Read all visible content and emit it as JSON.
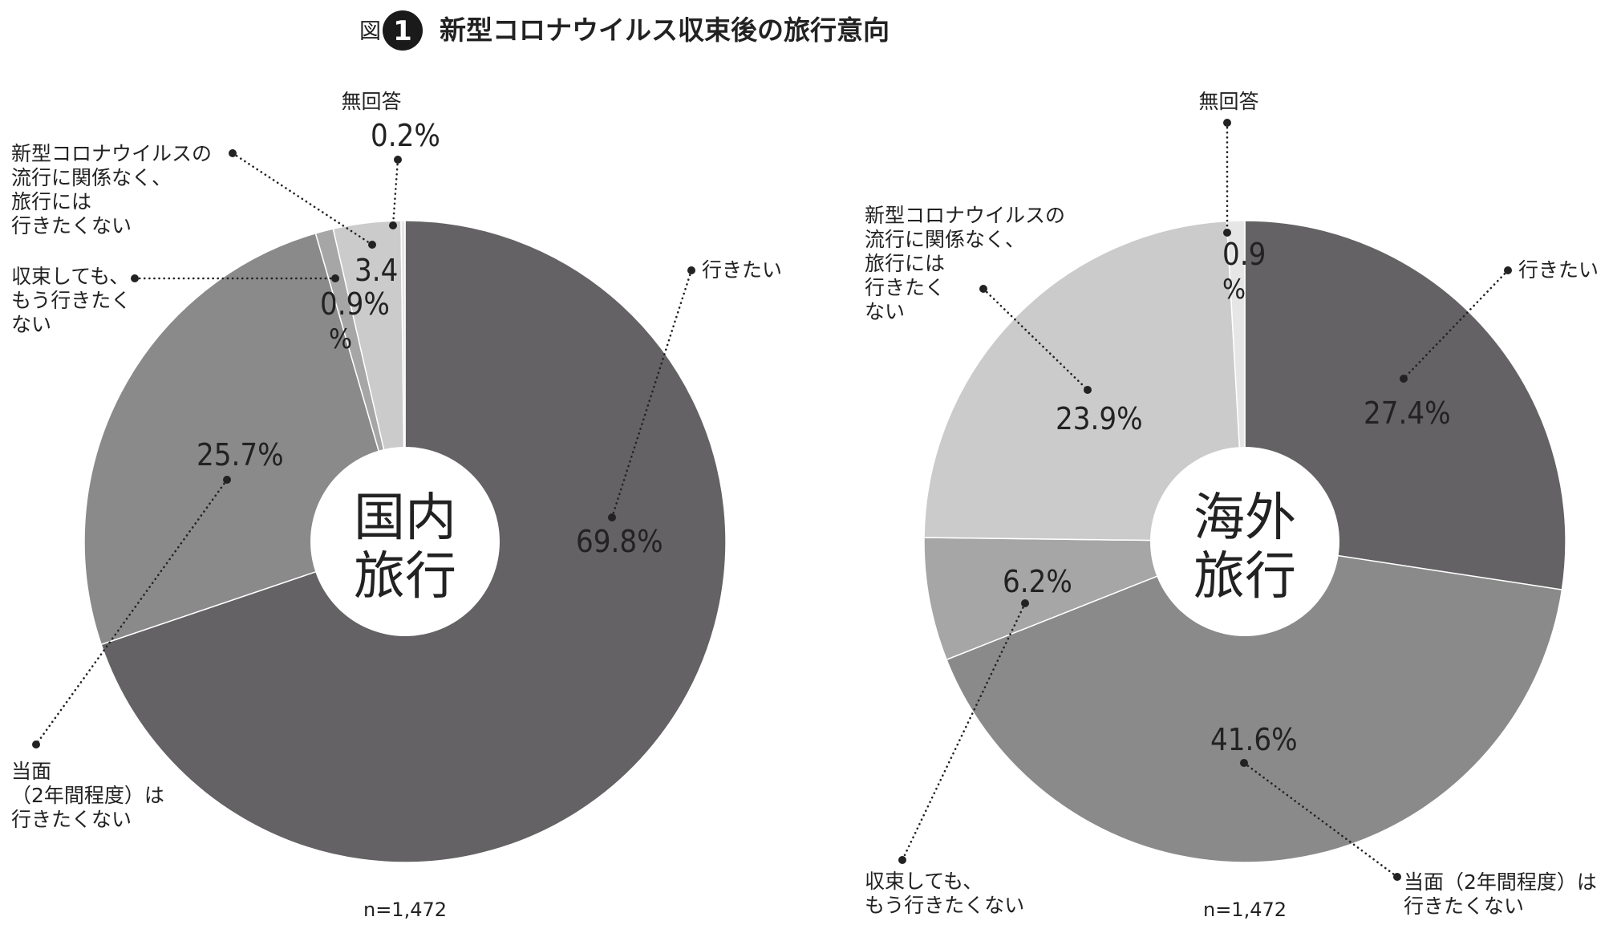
{
  "figure": {
    "prefix": "図",
    "number": "1",
    "title": "新型コロナウイルス収束後の旅行意向"
  },
  "chart_data": [
    {
      "type": "pie",
      "center_label": [
        "国内",
        "旅行"
      ],
      "note": "n=1,472",
      "slices": [
        {
          "key": "want",
          "value": 69.8,
          "color": "#646264",
          "value_label": "69.8%",
          "category": [
            "行きたい"
          ]
        },
        {
          "key": "two_years",
          "value": 25.7,
          "color": "#8a8a8a",
          "value_label": "25.7%",
          "category": [
            "当面",
            "（2年間程度）は",
            "行きたくない"
          ]
        },
        {
          "key": "after_end",
          "value": 0.9,
          "color": "#a6a6a6",
          "value_label": [
            "0.9%",
            "%"
          ],
          "category": [
            "収束しても、",
            "もう行きたく",
            "ない"
          ]
        },
        {
          "key": "regardless",
          "value": 3.4,
          "color": "#cbcbcb",
          "value_label": "3.4",
          "category": [
            "新型コロナウイルスの",
            "流行に関係なく、",
            "旅行には",
            "行きたくない"
          ]
        },
        {
          "key": "no_answer",
          "value": 0.2,
          "color": "#e6e6e6",
          "value_label": "0.2%",
          "category": [
            "無回答"
          ]
        }
      ]
    },
    {
      "type": "pie",
      "center_label": [
        "海外",
        "旅行"
      ],
      "note": "n=1,472",
      "slices": [
        {
          "key": "want",
          "value": 27.4,
          "color": "#646264",
          "value_label": "27.4%",
          "category": [
            "行きたい"
          ]
        },
        {
          "key": "two_years",
          "value": 41.6,
          "color": "#8a8a8a",
          "value_label": "41.6%",
          "category": [
            "当面（2年間程度）は",
            "行きたくない"
          ]
        },
        {
          "key": "after_end",
          "value": 6.2,
          "color": "#a6a6a6",
          "value_label": "6.2%",
          "category": [
            "収束しても、",
            "もう行きたくない"
          ]
        },
        {
          "key": "regardless",
          "value": 23.9,
          "color": "#cbcbcb",
          "value_label": "23.9%",
          "category": [
            "新型コロナウイルスの",
            "流行に関係なく、",
            "旅行には",
            "行きたく",
            "ない"
          ]
        },
        {
          "key": "no_answer",
          "value": 0.9,
          "color": "#e6e6e6",
          "value_label": [
            "0.9",
            "%"
          ],
          "category": [
            "無回答"
          ]
        }
      ]
    }
  ]
}
